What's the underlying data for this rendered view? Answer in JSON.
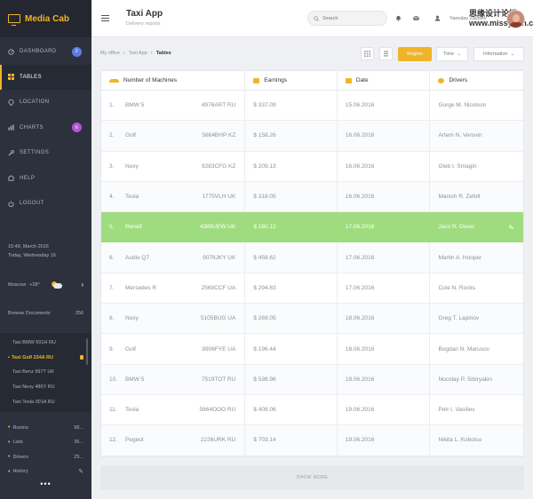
{
  "brand": {
    "name": "Media Cab"
  },
  "sidebar": {
    "nav": [
      {
        "label": "Dashboard",
        "badge": "2",
        "badge_color": "#5b7fe0"
      },
      {
        "label": "Tables",
        "badge": "",
        "badge_color": ""
      },
      {
        "label": "Location",
        "badge": "",
        "badge_color": ""
      },
      {
        "label": "Charts",
        "badge": "6",
        "badge_color": "#b454d8"
      },
      {
        "label": "Settings",
        "badge": "",
        "badge_color": ""
      },
      {
        "label": "Help",
        "badge": "",
        "badge_color": ""
      },
      {
        "label": "Logout",
        "badge": "",
        "badge_color": ""
      }
    ],
    "time": "15:48, March 2016",
    "day": "Today, Wednesday 16",
    "city": "Moscow",
    "temp": "+28°",
    "browse_label": "Browse Documents",
    "browse_count": "256",
    "docs": [
      {
        "label": "Taxi BMW 501H RU"
      },
      {
        "label": "Taxi Golf 234A RU"
      },
      {
        "label": "Taxi Benz 997T UK"
      },
      {
        "label": "Taxi Nexy 486Y RU"
      },
      {
        "label": "Taxi Tesla 001A RU"
      }
    ],
    "cats": [
      {
        "label": "Rooms",
        "count": "98..."
      },
      {
        "label": "Lists",
        "count": "36..."
      },
      {
        "label": "Drivers",
        "count": "25..."
      },
      {
        "label": "History",
        "count": ""
      }
    ],
    "more": "•••"
  },
  "topbar": {
    "title": "Taxi App",
    "subtitle": "Delivery reports",
    "search_placeholder": "Search",
    "user_name": "Yaroslav Zaytsev",
    "watermark": "思缘设计论坛 www.missyuan.com"
  },
  "breadcrumb": {
    "items": [
      "My office",
      "Taxi App"
    ],
    "current": "Tables",
    "sep": "›"
  },
  "filters": {
    "region": "Region",
    "time": "Time",
    "information": "Information",
    "chevron": "⌄"
  },
  "table": {
    "headers": [
      "Number of Machines",
      "Earnings",
      "Date",
      "Drivers"
    ],
    "rows": [
      {
        "num": "1.",
        "model": "BMW 5",
        "plate": "4976ART RU",
        "earn": "$ 337.09",
        "date": "15.06.2016",
        "driver": "Gorge M. Nicolson"
      },
      {
        "num": "2.",
        "model": "Golf",
        "plate": "5864BHP KZ",
        "earn": "$ 158.26",
        "date": "16.06.2016",
        "driver": "Artem N. Verovin"
      },
      {
        "num": "3.",
        "model": "Nexy",
        "plate": "9283CFG KZ",
        "earn": "$ 209.13",
        "date": "16.06.2016",
        "driver": "Gleb I. Smagin"
      },
      {
        "num": "4.",
        "model": "Tesla",
        "plate": "1775VLH UK",
        "earn": "$ 318.05",
        "date": "16.06.2016",
        "driver": "Manish R. Zefoll"
      },
      {
        "num": "5.",
        "model": "Renalt",
        "plate": "4389UEW UK",
        "earn": "$ 180.12",
        "date": "17.06.2016",
        "driver": "Jaco R. Dexer"
      },
      {
        "num": "6.",
        "model": "Audio Q7",
        "plate": "9076JKY UK",
        "earn": "$ 458.62",
        "date": "17.06.2016",
        "driver": "Martin A. Hooper"
      },
      {
        "num": "7.",
        "model": "Mersedes R",
        "plate": "2569CCF UA",
        "earn": "$ 294.83",
        "date": "17.06.2016",
        "driver": "Cole N. Rocks"
      },
      {
        "num": "8.",
        "model": "Nexy",
        "plate": "5105BUG UA",
        "earn": "$ 269.05",
        "date": "18.06.2016",
        "driver": "Greg T. Lapinov"
      },
      {
        "num": "9.",
        "model": "Golf",
        "plate": "9906FYE UA",
        "earn": "$ 196.44",
        "date": "18.06.2016",
        "driver": "Bogdan N. Marusov"
      },
      {
        "num": "10.",
        "model": "BMW 5",
        "plate": "7519TOT RU",
        "earn": "$ 598.96",
        "date": "18.06.2016",
        "driver": "Nocolay P. Sibiryakin"
      },
      {
        "num": "11.",
        "model": "Tesla",
        "plate": "5864OOO RU",
        "earn": "$ 408.06",
        "date": "19.06.2016",
        "driver": "Petr I. Vasiliev"
      },
      {
        "num": "12.",
        "model": "Pegeot",
        "plate": "2226URK RU",
        "earn": "$ 703.14",
        "date": "19.06.2016",
        "driver": "Nikita L. Kobolso"
      }
    ],
    "selected_row": 4,
    "show_more": "SHOW MORE"
  },
  "colors": {
    "accent": "#f0b429",
    "selected": "#9fdc7f",
    "sidebar": "#2d313d"
  }
}
